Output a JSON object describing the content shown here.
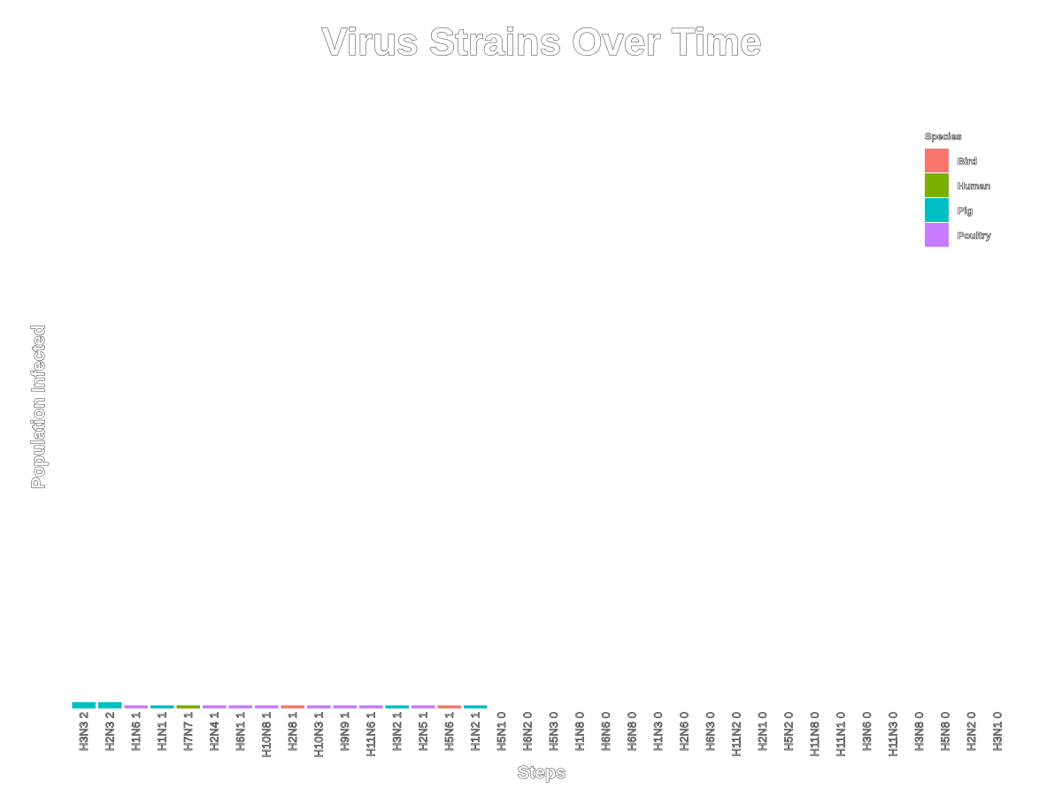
{
  "chart_data": {
    "type": "bar",
    "title": "Virus Strains Over Time",
    "xlabel": "Steps",
    "ylabel": "Population Infected",
    "legend": {
      "title": "Species",
      "position": "right",
      "entries": [
        {
          "name": "Bird",
          "color": "#F8766D"
        },
        {
          "name": "Human",
          "color": "#7CAE00"
        },
        {
          "name": "Pig",
          "color": "#00BFC4"
        },
        {
          "name": "Poultry",
          "color": "#C77CFF"
        }
      ]
    },
    "grid": false,
    "ylim": [
      0,
      200
    ],
    "categories": [
      "H3N3",
      "H2N3",
      "H1N6",
      "H1N1",
      "H7N7",
      "H2N4",
      "H6N1",
      "H10N8",
      "H2N8",
      "H10N3",
      "H9N9",
      "H11N6",
      "H3N2",
      "H2N5",
      "H5N6",
      "H1N2",
      "H5N1",
      "H6N2",
      "H5N3",
      "H1N8",
      "H6N6",
      "H6N8",
      "H1N3",
      "H2N6",
      "H6N3",
      "H11N2",
      "H2N1",
      "H5N2",
      "H11N8",
      "H11N1",
      "H3N6",
      "H11N3",
      "H3N8",
      "H5N8",
      "H2N2",
      "H3N1"
    ],
    "values": [
      2,
      2,
      1,
      1,
      1,
      1,
      1,
      1,
      1,
      1,
      1,
      1,
      1,
      1,
      1,
      1,
      0,
      0,
      0,
      0,
      0,
      0,
      0,
      0,
      0,
      0,
      0,
      0,
      0,
      0,
      0,
      0,
      0,
      0,
      0,
      0
    ],
    "species": [
      "Pig",
      "Pig",
      "Poultry",
      "Pig",
      "Human",
      "Poultry",
      "Poultry",
      "Poultry",
      "Bird",
      "Poultry",
      "Poultry",
      "Poultry",
      "Pig",
      "Poultry",
      "Bird",
      "Pig",
      "",
      "",
      "",
      "",
      "",
      "",
      "",
      "",
      "",
      "",
      "",
      "",
      "",
      "",
      "",
      "",
      "",
      "",
      "",
      ""
    ]
  }
}
